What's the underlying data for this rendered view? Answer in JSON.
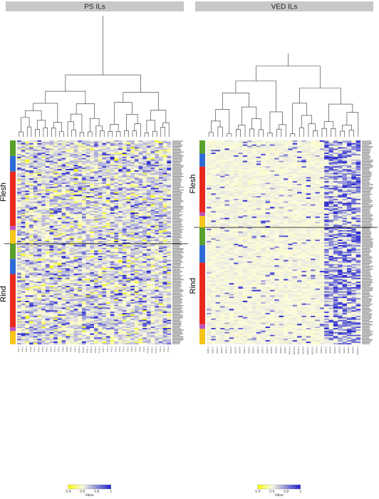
{
  "chart_data": [
    {
      "type": "heatmap",
      "title": "PS ILs",
      "row_groups": [
        "Flesh",
        "Rind"
      ],
      "color_scale": {
        "low": "#f5f500",
        "mid": "#fbfbe0",
        "high": "#2020d0",
        "ticks": [
          0.4,
          0.6,
          0.8,
          1
        ],
        "label": "Value"
      },
      "column_labels": [
        "PS2-1",
        "PS2-2",
        "PS3-1",
        "PS3-2",
        "PS4-1",
        "PS4-2",
        "PS5-1",
        "PS6-1",
        "PS6-2",
        "PS7-1",
        "PS7-2",
        "PS8-1",
        "PS8-2",
        "PS9-1",
        "PS9-2",
        "PS10-1",
        "PS10-2",
        "PS11-1",
        "PS11-2",
        "PS12-1",
        "PS12-2",
        "PS1-1",
        "PS1-2",
        "PS1-3",
        "PS2-3",
        "PS3-3",
        "PS4-3",
        "PS5-2",
        "PS6-3",
        "PS7-3",
        "PS8-3",
        "PS9-3",
        "PS10-3",
        "PS11-3",
        "PS12-3",
        "PS1-4",
        "PS2-4",
        "PS3-4"
      ]
    },
    {
      "type": "heatmap",
      "title": "VED ILs",
      "row_groups": [
        "Flesh",
        "Rind"
      ],
      "color_scale": {
        "low": "#f5f500",
        "mid": "#fbfbe0",
        "high": "#2020d0",
        "ticks": [
          0.4,
          0.6,
          0.8,
          1
        ],
        "label": "Value"
      },
      "column_labels": [
        "VED1-1",
        "VED1-2",
        "VED2-1",
        "VED2-2",
        "VED3-1",
        "VED3-2",
        "VED4-1",
        "VED4-2",
        "VED5-1",
        "VED5-2",
        "VED6-1",
        "VED6-2",
        "VED7-1",
        "VED7-2",
        "VED8-1",
        "VED8-2",
        "VED9-1",
        "VED9-2",
        "VED10-1",
        "VED10-2",
        "VED11-1",
        "VED11-2",
        "VED12-1",
        "VED12-2",
        "VED1-3",
        "VED2-3",
        "VED3-3",
        "VED4-3",
        "VED5-3",
        "VED6-3",
        "VED7-3",
        "VED8-3",
        "VED9-3",
        "VED10-3"
      ]
    }
  ]
}
